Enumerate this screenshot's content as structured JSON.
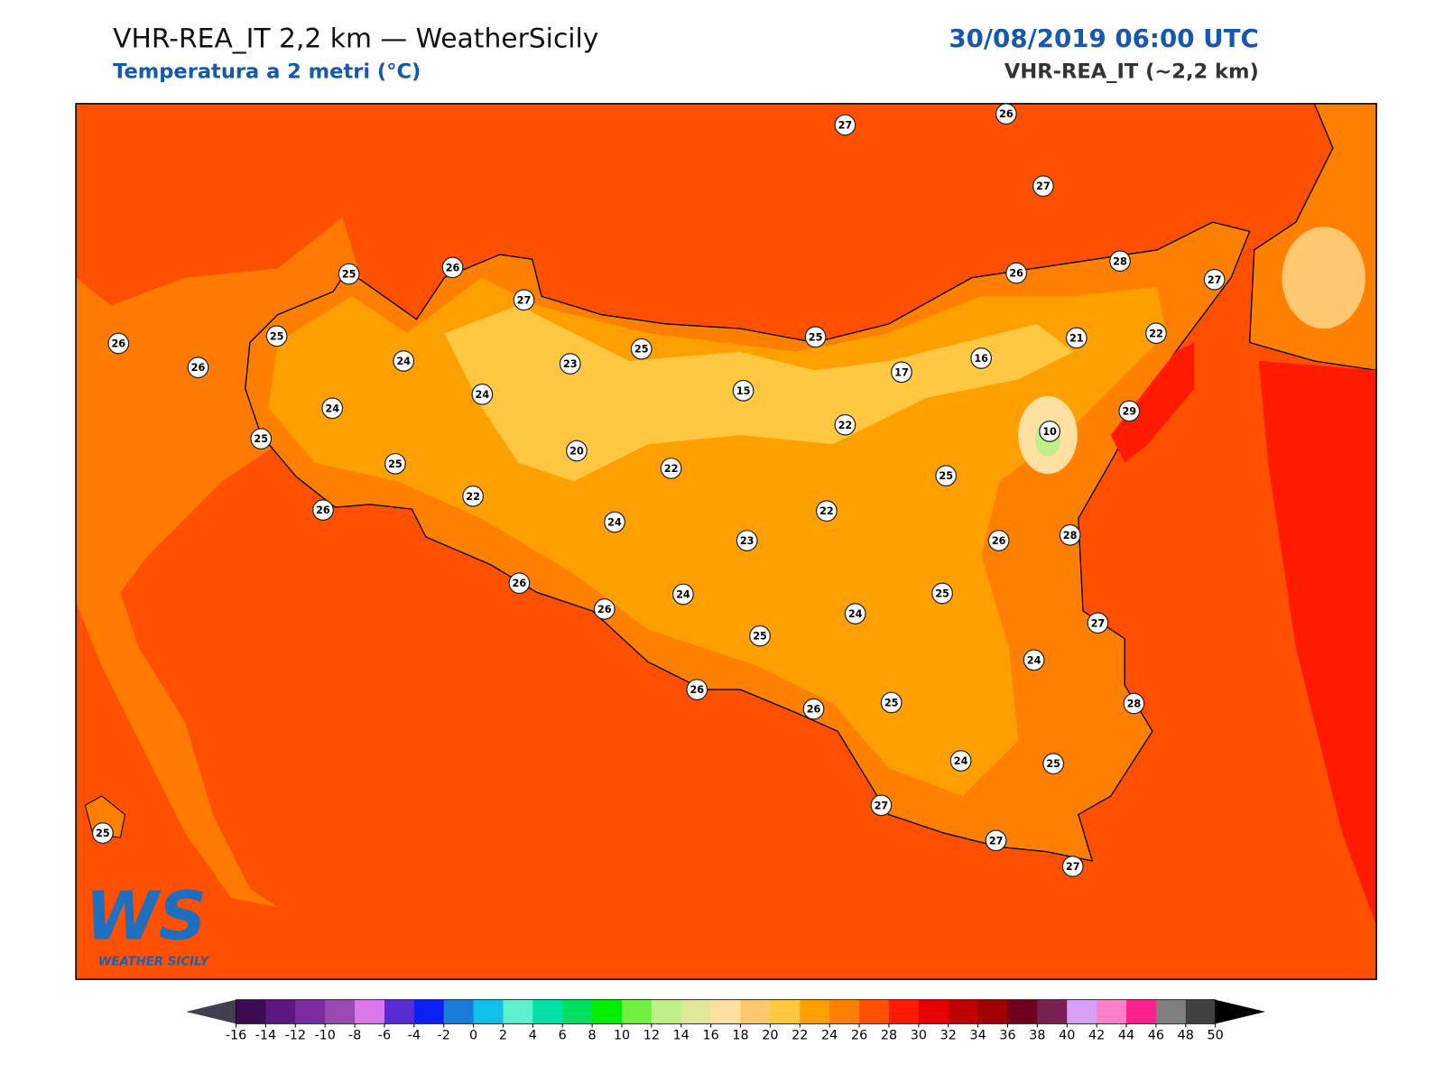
{
  "header": {
    "title": "VHR-REA_IT 2,2 km — WeatherSicily",
    "subtitle": "Temperatura a 2 metri (°C)",
    "datetime": "30/08/2019 06:00 UTC",
    "model": "VHR-REA_IT (~2,2 km)"
  },
  "logo": {
    "mark": "WS",
    "name": "WEATHER SICILY"
  },
  "stations": [
    27,
    26,
    27,
    25,
    26,
    27,
    26,
    28,
    27,
    26,
    25,
    26,
    24,
    23,
    25,
    25,
    21,
    22,
    16,
    17,
    24,
    15,
    24,
    22,
    10,
    29,
    25,
    20,
    25,
    22,
    25,
    22,
    22,
    24,
    23,
    26,
    28,
    26,
    26,
    24,
    25,
    26,
    24,
    27,
    25,
    24,
    26,
    26,
    25,
    28,
    24,
    25,
    27,
    25,
    27,
    27
  ],
  "colorbar": {
    "ticks": [
      -16,
      -14,
      -12,
      -10,
      -8,
      -6,
      -4,
      -2,
      0,
      2,
      4,
      6,
      8,
      10,
      12,
      14,
      16,
      18,
      20,
      22,
      24,
      26,
      28,
      30,
      32,
      34,
      36,
      38,
      40,
      42,
      44,
      46,
      48,
      50
    ],
    "colors": [
      "#3b0a4f",
      "#5c1680",
      "#7c2c9e",
      "#9b4ab5",
      "#dd77ee",
      "#5a2bd0",
      "#0a20f5",
      "#1a7cd8",
      "#10c0e8",
      "#5df0d0",
      "#00e0a8",
      "#00e060",
      "#00f000",
      "#70f040",
      "#c0ee88",
      "#e0e898",
      "#ffe0a0",
      "#ffc870",
      "#ffc840",
      "#ffa000",
      "#ff8000",
      "#ff5000",
      "#ff1a00",
      "#e80000",
      "#c00000",
      "#a00000",
      "#700020",
      "#7a2050",
      "#d8a0f8",
      "#ff80c8",
      "#ff2090",
      "#808080",
      "#404040"
    ],
    "under_color": "#404050",
    "over_color": "#000000"
  }
}
